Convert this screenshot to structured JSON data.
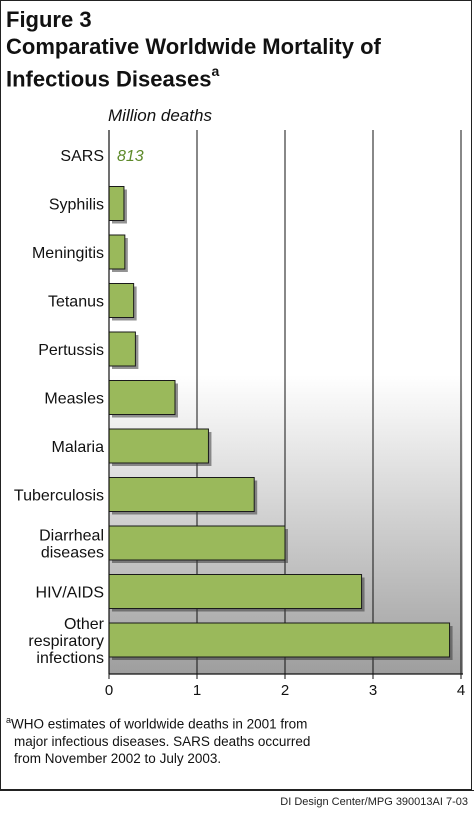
{
  "figure": {
    "label": "Figure 3",
    "title_line1": "Comparative Worldwide Mortality of",
    "title_line2": "Infectious Diseases",
    "title_marker": "a"
  },
  "chart_data": {
    "type": "bar",
    "orientation": "horizontal",
    "unit_label": "Million deaths",
    "categories": [
      "SARS",
      "Syphilis",
      "Meningitis",
      "Tetanus",
      "Pertussis",
      "Measles",
      "Malaria",
      "Tuberculosis",
      "Diarrheal diseases",
      "HIV/AIDS",
      "Other respiratory infections"
    ],
    "category_lines": [
      [
        "SARS"
      ],
      [
        "Syphilis"
      ],
      [
        "Meningitis"
      ],
      [
        "Tetanus"
      ],
      [
        "Pertussis"
      ],
      [
        "Measles"
      ],
      [
        "Malaria"
      ],
      [
        "Tuberculosis"
      ],
      [
        "Diarrheal",
        "diseases"
      ],
      [
        "HIV/AIDS"
      ],
      [
        "Other",
        "respiratory",
        "infections"
      ]
    ],
    "values": [
      0.000813,
      0.17,
      0.18,
      0.28,
      0.3,
      0.75,
      1.13,
      1.65,
      2.0,
      2.87,
      3.87
    ],
    "data_labels": {
      "SARS": "813"
    },
    "xlim": [
      0,
      4
    ],
    "ticks": [
      0,
      1,
      2,
      3,
      4
    ],
    "tick_labels": [
      "0",
      "1",
      "2",
      "3",
      "4"
    ],
    "grid": "vertical gridlines",
    "bar_color": "#9ab95b",
    "bar_edge_color": "#1a1a1a",
    "sars_label_color": "#5e8a2a",
    "background_gradient": [
      "#ffffff",
      "#9e9e9e"
    ]
  },
  "footnote": {
    "marker": "a",
    "line1": "WHO estimates of worldwide deaths in 2001 from",
    "line2": "major infectious diseases. SARS deaths occurred",
    "line3": "from November 2002 to July 2003."
  },
  "credit": "DI Design Center/MPG 390013AI 7-03"
}
